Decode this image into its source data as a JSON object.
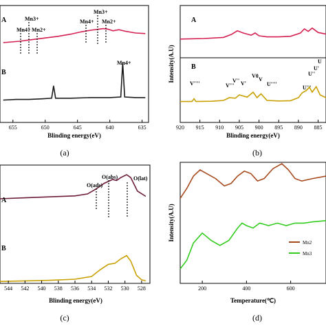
{
  "chart_data": [
    {
      "type": "line",
      "panel": "a",
      "caption": "(a)",
      "xlabel": "Blinding energy(eV)",
      "ylabel": "",
      "x_ticks": [
        655,
        650,
        645,
        640,
        635
      ],
      "xlim": [
        657,
        634
      ],
      "curve_labels": [
        "A",
        "B"
      ],
      "annotations": [
        "Mn4+",
        "Mn3+",
        "Mn2+",
        "Mn4+",
        "Mn3+",
        "Mn2+",
        "Mn4+"
      ],
      "series": [
        {
          "color": "#d42050",
          "x": [
            656.5,
            654,
            652,
            650,
            648,
            646,
            644.5,
            643,
            642,
            641,
            640.3,
            639.5,
            638.6,
            637.5,
            636,
            634.5
          ],
          "y": [
            0.55,
            0.6,
            0.66,
            0.72,
            0.78,
            0.86,
            0.94,
            1.0,
            1.03,
            1.06,
            1.04,
            0.98,
            1.02,
            0.96,
            0.9,
            0.88
          ]
        },
        {
          "color": "#1a1a1a",
          "x": [
            656.5,
            654.5,
            652.5,
            650.5,
            649,
            648.7,
            648.4,
            646,
            643,
            640,
            638.3,
            638,
            637.7,
            636,
            634.5
          ],
          "y": [
            0.05,
            0.06,
            0.06,
            0.07,
            0.08,
            0.28,
            0.08,
            0.08,
            0.09,
            0.09,
            0.1,
            0.65,
            0.1,
            0.09,
            0.09
          ]
        }
      ]
    },
    {
      "type": "line",
      "panel": "b",
      "caption": "(b)",
      "xlabel": "Blinding energy(eV)",
      "ylabel": "Intensity(A.U)",
      "x_ticks": [
        920,
        915,
        910,
        905,
        900,
        895,
        890,
        885
      ],
      "xlim": [
        920,
        883
      ],
      "curve_labels": [
        "A",
        "B"
      ],
      "annotations": [
        "V''''",
        "V'''",
        "V''",
        "V'",
        "V0",
        "V",
        "U''''",
        "U'''",
        "U''",
        "U'",
        "U"
      ],
      "series": [
        {
          "color": "#d42050",
          "x": [
            920,
            914,
            909,
            907,
            905.5,
            904,
            902,
            901,
            900,
            898,
            895,
            892,
            889.5,
            888.5,
            887.5,
            886.5,
            885,
            883
          ],
          "y": [
            0.58,
            0.6,
            0.64,
            0.75,
            0.88,
            0.8,
            0.72,
            0.8,
            0.7,
            0.66,
            0.66,
            0.68,
            0.8,
            0.95,
            0.86,
            0.98,
            0.82,
            0.76
          ]
        },
        {
          "color": "#c8a000",
          "x": [
            920,
            917,
            916.5,
            916,
            912,
            909,
            907.5,
            906,
            905,
            903,
            901.5,
            900.5,
            899.5,
            898,
            895,
            892,
            890,
            889,
            888,
            887.2,
            886.5,
            885.5,
            884.5,
            883
          ],
          "y": [
            0.06,
            0.06,
            0.16,
            0.06,
            0.07,
            0.1,
            0.2,
            0.18,
            0.3,
            0.22,
            0.4,
            0.2,
            0.34,
            0.1,
            0.08,
            0.09,
            0.2,
            0.38,
            0.46,
            0.58,
            0.4,
            0.6,
            0.3,
            0.2
          ]
        }
      ]
    },
    {
      "type": "line",
      "panel": "c",
      "caption": "(c)",
      "xlabel": "Blinding energy(eV)",
      "ylabel": "",
      "x_ticks": [
        544,
        542,
        540,
        538,
        536,
        534,
        532,
        530,
        528
      ],
      "xlim": [
        545,
        527
      ],
      "curve_labels": [
        "A",
        "B"
      ],
      "annotations": [
        "O(ads)",
        "O(abs)",
        "O(lat)"
      ],
      "series": [
        {
          "color": "#6b1a3a",
          "x": [
            545,
            542,
            539,
            536,
            534.5,
            533.5,
            532.5,
            531.5,
            531,
            530.5,
            529.8,
            529.3,
            528.5,
            527.5
          ],
          "y": [
            0.5,
            0.52,
            0.54,
            0.56,
            0.6,
            0.7,
            0.82,
            0.9,
            0.88,
            0.94,
            1.0,
            0.94,
            0.66,
            0.55
          ]
        },
        {
          "color": "#c8a000",
          "x": [
            545,
            542,
            539,
            536,
            534,
            533,
            532,
            531.2,
            530.5,
            529.8,
            529.3,
            528.6,
            528,
            527.5
          ],
          "y": [
            0.01,
            0.02,
            0.03,
            0.05,
            0.1,
            0.22,
            0.32,
            0.34,
            0.42,
            0.48,
            0.38,
            0.12,
            0.04,
            0.02
          ]
        }
      ]
    },
    {
      "type": "line",
      "panel": "d",
      "caption": "(d)",
      "xlabel": "Temperature(℃)",
      "ylabel": "Intensity(A.U)",
      "x_ticks": [
        200,
        400,
        600
      ],
      "xlim": [
        100,
        760
      ],
      "legend": [
        "Mn2",
        "Mn3"
      ],
      "legend_position": "bottom-right",
      "series": [
        {
          "name": "Mn2",
          "color": "#a64a1e",
          "x": [
            100,
            130,
            160,
            190,
            220,
            260,
            300,
            330,
            360,
            390,
            420,
            450,
            480,
            520,
            560,
            590,
            620,
            650,
            700,
            760
          ],
          "y": [
            0.62,
            0.7,
            0.8,
            0.85,
            0.82,
            0.78,
            0.72,
            0.74,
            0.8,
            0.84,
            0.82,
            0.76,
            0.78,
            0.86,
            0.9,
            0.85,
            0.78,
            0.76,
            0.78,
            0.8
          ]
        },
        {
          "name": "Mn3",
          "color": "#33cc1e",
          "x": [
            100,
            130,
            160,
            200,
            240,
            280,
            320,
            360,
            380,
            400,
            430,
            460,
            500,
            540,
            580,
            620,
            660,
            700,
            760
          ],
          "y": [
            0.05,
            0.12,
            0.26,
            0.34,
            0.28,
            0.24,
            0.28,
            0.38,
            0.42,
            0.4,
            0.38,
            0.42,
            0.4,
            0.42,
            0.4,
            0.42,
            0.42,
            0.43,
            0.44
          ]
        }
      ]
    }
  ]
}
